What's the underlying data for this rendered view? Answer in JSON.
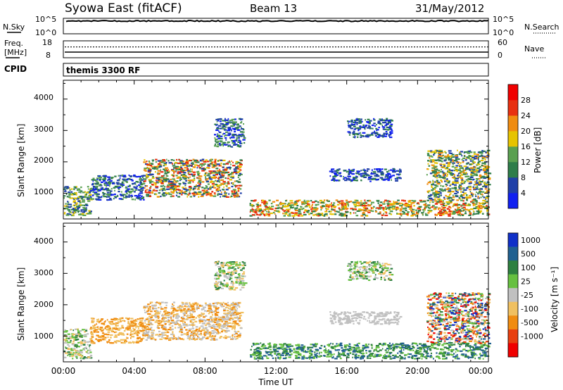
{
  "header": {
    "station": "Syowa East (fitACF)",
    "beam": "Beam 13",
    "date": "31/May/2012"
  },
  "noise_panel": {
    "left_label": "N.Sky",
    "right_label": "N.Search",
    "left_ticks": [
      "10^5",
      "10^0"
    ],
    "right_ticks": [
      "10^5",
      "10^0"
    ],
    "n_sky_level": 32000
  },
  "freq_panel": {
    "left_label_1": "Freq.",
    "left_label_2": "[MHz]",
    "right_label": "Nave",
    "left_ticks": [
      "18",
      "8"
    ],
    "right_ticks": [
      "60",
      "0"
    ],
    "freq_mhz": 11,
    "nave": 40
  },
  "cpid_panel": {
    "label": "CPID",
    "program": "themis 3300 RF"
  },
  "time_axis": {
    "xlabel": "Time UT",
    "ticks": [
      "00:00",
      "04:00",
      "08:00",
      "12:00",
      "16:00",
      "20:00",
      "00:00"
    ]
  },
  "power_panel": {
    "ylabel": "Slant Range [km]",
    "yticks": [
      "1000",
      "2000",
      "3000",
      "4000"
    ],
    "colorbar_label": "Power [dB]",
    "colorbar_ticks": [
      "28",
      "24",
      "20",
      "16",
      "12",
      "8",
      "4"
    ],
    "colors": [
      "#1020f0",
      "#2040a8",
      "#2e7d4a",
      "#5aa050",
      "#e6c300",
      "#f08c10",
      "#e83010",
      "#f00000"
    ]
  },
  "velocity_panel": {
    "ylabel": "Slant Range [km]",
    "yticks": [
      "1000",
      "2000",
      "3000",
      "4000"
    ],
    "colorbar_label": "Velocity [m s⁻¹]",
    "colorbar_ticks": [
      "1000",
      "500",
      "100",
      "25",
      "-25",
      "-100",
      "-500",
      "-1000"
    ],
    "colors": [
      "#1030c8",
      "#206090",
      "#2e8040",
      "#66c040",
      "#c0c0c0",
      "#f0c060",
      "#f08c10",
      "#e84010",
      "#f00000"
    ]
  },
  "chart_data": {
    "type": "heatmap",
    "x_unit": "hours UT",
    "y_unit": "km",
    "xlim": [
      0,
      24
    ],
    "ylim": [
      180,
      4600
    ],
    "echo_regions": [
      {
        "t": [
          0.0,
          1.5
        ],
        "r": [
          300,
          1250
        ],
        "power": "8-20",
        "velocity": "-100 to 100"
      },
      {
        "t": [
          1.5,
          4.5
        ],
        "r": [
          800,
          1600
        ],
        "power": "4-16",
        "velocity": "-500 to -25"
      },
      {
        "t": [
          4.5,
          10.0
        ],
        "r": [
          900,
          2100
        ],
        "power": "8-28",
        "velocity": "-500 to 25"
      },
      {
        "t": [
          8.5,
          10.2
        ],
        "r": [
          2500,
          3400
        ],
        "power": "4-16",
        "velocity": "-100 to 100"
      },
      {
        "t": [
          10.5,
          24.0
        ],
        "r": [
          300,
          800
        ],
        "power": "12-28",
        "velocity": "100 to 500"
      },
      {
        "t": [
          15.0,
          19.0
        ],
        "r": [
          1400,
          1800
        ],
        "power": "4-12",
        "velocity": "-25 to 25"
      },
      {
        "t": [
          16.0,
          18.5
        ],
        "r": [
          2800,
          3400
        ],
        "power": "4-12",
        "velocity": "-100 to 500"
      },
      {
        "t": [
          20.5,
          24.0
        ],
        "r": [
          800,
          2400
        ],
        "power": "8-24",
        "velocity": "-1000 to 500"
      }
    ]
  }
}
